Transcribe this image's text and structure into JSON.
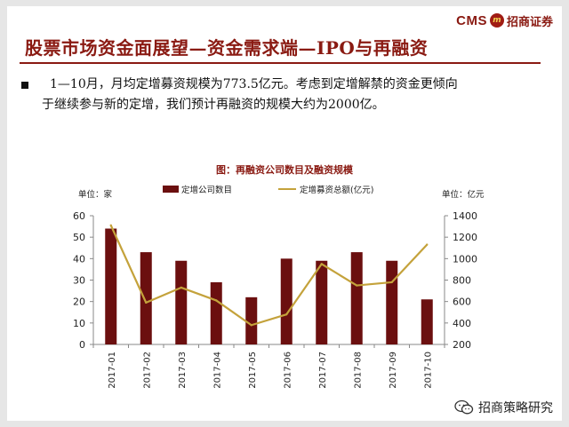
{
  "header": {
    "brand_cms": "CMS",
    "brand_logo_text": "m",
    "brand_name": "招商证券",
    "title": "股票市场资金面展望—资金需求端—IPO与再融资"
  },
  "bullet": {
    "line1": "1—10月，月均定增募资规模为773.5亿元。考虑到定增解禁的资金更倾向",
    "line2": "于继续参与新的定增，我们预计再融资的规模大约为2000亿。"
  },
  "watermark": {
    "text": "招商策略研究"
  },
  "colors": {
    "bar": "#6b0f0f",
    "line": "#c4a23b",
    "accent": "#8a1a12"
  },
  "chart_data": {
    "type": "bar+line",
    "title": "图：再融资公司数目及融资规模",
    "left_axis_unit": "单位：家",
    "right_axis_unit": "单位：亿元",
    "categories": [
      "2017-01",
      "2017-02",
      "2017-03",
      "2017-04",
      "2017-05",
      "2017-06",
      "2017-07",
      "2017-08",
      "2017-09",
      "2017-10"
    ],
    "series": [
      {
        "name": "定增公司数目",
        "type": "bar",
        "axis": "left",
        "values": [
          54,
          43,
          39,
          29,
          22,
          40,
          39,
          43,
          39,
          21
        ]
      },
      {
        "name": "定增募资总额(亿元)",
        "type": "line",
        "axis": "right",
        "values": [
          1310,
          590,
          730,
          610,
          380,
          480,
          950,
          750,
          780,
          1130
        ]
      }
    ],
    "ylim_left": [
      0,
      60
    ],
    "yticks_left": [
      "0",
      "10",
      "20",
      "30",
      "40",
      "50",
      "60"
    ],
    "ylim_right": [
      200,
      1400
    ],
    "yticks_right": [
      "200",
      "400",
      "600",
      "800",
      "1000",
      "1200",
      "1400"
    ],
    "legend_position": "top",
    "grid": false
  }
}
